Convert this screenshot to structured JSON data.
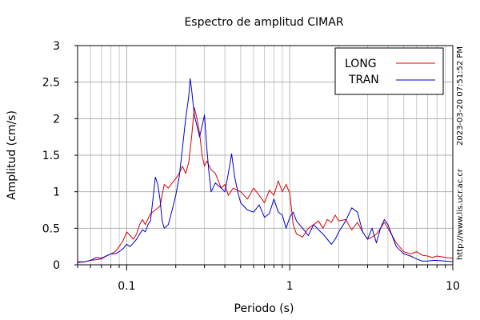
{
  "chart_data": {
    "type": "line",
    "title": "Espectro de amplitud CIMAR",
    "xlabel": "Periodo (s)",
    "ylabel": "Amplitud (cm/s)",
    "x_scale": "log",
    "xlim": [
      0.05,
      10
    ],
    "ylim": [
      0,
      3
    ],
    "x_ticks": [
      {
        "value": 0.1,
        "label": "0.1"
      },
      {
        "value": 1,
        "label": "1"
      },
      {
        "value": 10,
        "label": "10"
      }
    ],
    "y_ticks": [
      {
        "value": 0,
        "label": "0"
      },
      {
        "value": 0.5,
        "label": "0.5"
      },
      {
        "value": 1,
        "label": "1"
      },
      {
        "value": 1.5,
        "label": "1.5"
      },
      {
        "value": 2,
        "label": "2"
      },
      {
        "value": 2.5,
        "label": "2.5"
      },
      {
        "value": 3,
        "label": "3"
      }
    ],
    "grid": true,
    "legend_position": "top-right",
    "series": [
      {
        "name": "LONG",
        "color": "#dd0000",
        "points": [
          [
            0.05,
            0.04
          ],
          [
            0.055,
            0.04
          ],
          [
            0.06,
            0.06
          ],
          [
            0.065,
            0.07
          ],
          [
            0.07,
            0.08
          ],
          [
            0.075,
            0.12
          ],
          [
            0.08,
            0.15
          ],
          [
            0.085,
            0.18
          ],
          [
            0.09,
            0.25
          ],
          [
            0.095,
            0.33
          ],
          [
            0.1,
            0.45
          ],
          [
            0.105,
            0.4
          ],
          [
            0.11,
            0.35
          ],
          [
            0.115,
            0.42
          ],
          [
            0.12,
            0.55
          ],
          [
            0.125,
            0.62
          ],
          [
            0.13,
            0.55
          ],
          [
            0.14,
            0.7
          ],
          [
            0.15,
            0.75
          ],
          [
            0.16,
            0.8
          ],
          [
            0.17,
            1.1
          ],
          [
            0.18,
            1.05
          ],
          [
            0.19,
            1.12
          ],
          [
            0.2,
            1.18
          ],
          [
            0.21,
            1.25
          ],
          [
            0.22,
            1.35
          ],
          [
            0.23,
            1.25
          ],
          [
            0.24,
            1.4
          ],
          [
            0.25,
            1.75
          ],
          [
            0.26,
            2.15
          ],
          [
            0.27,
            2.0
          ],
          [
            0.28,
            1.8
          ],
          [
            0.29,
            1.5
          ],
          [
            0.3,
            1.35
          ],
          [
            0.31,
            1.42
          ],
          [
            0.33,
            1.3
          ],
          [
            0.35,
            1.25
          ],
          [
            0.38,
            1.05
          ],
          [
            0.4,
            1.1
          ],
          [
            0.42,
            0.95
          ],
          [
            0.45,
            1.05
          ],
          [
            0.5,
            1.0
          ],
          [
            0.55,
            0.9
          ],
          [
            0.6,
            1.05
          ],
          [
            0.65,
            0.95
          ],
          [
            0.7,
            0.85
          ],
          [
            0.75,
            1.02
          ],
          [
            0.8,
            0.95
          ],
          [
            0.85,
            1.15
          ],
          [
            0.9,
            1.0
          ],
          [
            0.95,
            1.1
          ],
          [
            1.0,
            0.98
          ],
          [
            1.05,
            0.55
          ],
          [
            1.1,
            0.42
          ],
          [
            1.2,
            0.38
          ],
          [
            1.3,
            0.5
          ],
          [
            1.4,
            0.55
          ],
          [
            1.5,
            0.6
          ],
          [
            1.6,
            0.5
          ],
          [
            1.7,
            0.62
          ],
          [
            1.8,
            0.58
          ],
          [
            1.9,
            0.68
          ],
          [
            2.0,
            0.6
          ],
          [
            2.2,
            0.62
          ],
          [
            2.4,
            0.48
          ],
          [
            2.6,
            0.58
          ],
          [
            2.8,
            0.45
          ],
          [
            3.0,
            0.35
          ],
          [
            3.2,
            0.38
          ],
          [
            3.4,
            0.42
          ],
          [
            3.6,
            0.5
          ],
          [
            3.8,
            0.58
          ],
          [
            4.0,
            0.5
          ],
          [
            4.2,
            0.42
          ],
          [
            4.5,
            0.3
          ],
          [
            5.0,
            0.18
          ],
          [
            5.5,
            0.15
          ],
          [
            6.0,
            0.18
          ],
          [
            6.5,
            0.13
          ],
          [
            7.0,
            0.12
          ],
          [
            7.5,
            0.1
          ],
          [
            8.0,
            0.12
          ],
          [
            9.0,
            0.1
          ],
          [
            10.0,
            0.09
          ]
        ]
      },
      {
        "name": "TRAN",
        "color": "#0000cc",
        "points": [
          [
            0.05,
            0.03
          ],
          [
            0.055,
            0.04
          ],
          [
            0.06,
            0.06
          ],
          [
            0.065,
            0.1
          ],
          [
            0.07,
            0.09
          ],
          [
            0.075,
            0.12
          ],
          [
            0.08,
            0.15
          ],
          [
            0.085,
            0.15
          ],
          [
            0.09,
            0.18
          ],
          [
            0.095,
            0.22
          ],
          [
            0.1,
            0.28
          ],
          [
            0.105,
            0.25
          ],
          [
            0.11,
            0.3
          ],
          [
            0.115,
            0.35
          ],
          [
            0.12,
            0.42
          ],
          [
            0.125,
            0.48
          ],
          [
            0.13,
            0.45
          ],
          [
            0.135,
            0.55
          ],
          [
            0.14,
            0.6
          ],
          [
            0.145,
            0.9
          ],
          [
            0.15,
            1.2
          ],
          [
            0.155,
            1.1
          ],
          [
            0.16,
            0.9
          ],
          [
            0.165,
            0.6
          ],
          [
            0.17,
            0.5
          ],
          [
            0.18,
            0.55
          ],
          [
            0.19,
            0.75
          ],
          [
            0.2,
            0.95
          ],
          [
            0.21,
            1.2
          ],
          [
            0.22,
            1.6
          ],
          [
            0.23,
            2.0
          ],
          [
            0.24,
            2.3
          ],
          [
            0.245,
            2.55
          ],
          [
            0.25,
            2.4
          ],
          [
            0.26,
            2.05
          ],
          [
            0.27,
            1.9
          ],
          [
            0.28,
            1.75
          ],
          [
            0.29,
            1.9
          ],
          [
            0.3,
            2.05
          ],
          [
            0.31,
            1.6
          ],
          [
            0.32,
            1.25
          ],
          [
            0.33,
            1.0
          ],
          [
            0.35,
            1.12
          ],
          [
            0.38,
            1.05
          ],
          [
            0.4,
            1.0
          ],
          [
            0.42,
            1.25
          ],
          [
            0.44,
            1.52
          ],
          [
            0.46,
            1.2
          ],
          [
            0.48,
            1.0
          ],
          [
            0.5,
            0.85
          ],
          [
            0.55,
            0.75
          ],
          [
            0.6,
            0.72
          ],
          [
            0.65,
            0.82
          ],
          [
            0.7,
            0.65
          ],
          [
            0.75,
            0.7
          ],
          [
            0.8,
            0.9
          ],
          [
            0.85,
            0.72
          ],
          [
            0.9,
            0.68
          ],
          [
            0.95,
            0.5
          ],
          [
            1.0,
            0.65
          ],
          [
            1.05,
            0.72
          ],
          [
            1.1,
            0.6
          ],
          [
            1.2,
            0.5
          ],
          [
            1.3,
            0.4
          ],
          [
            1.4,
            0.55
          ],
          [
            1.5,
            0.48
          ],
          [
            1.6,
            0.42
          ],
          [
            1.7,
            0.35
          ],
          [
            1.8,
            0.28
          ],
          [
            1.9,
            0.35
          ],
          [
            2.0,
            0.45
          ],
          [
            2.2,
            0.6
          ],
          [
            2.4,
            0.78
          ],
          [
            2.6,
            0.72
          ],
          [
            2.8,
            0.45
          ],
          [
            3.0,
            0.35
          ],
          [
            3.2,
            0.5
          ],
          [
            3.4,
            0.3
          ],
          [
            3.6,
            0.5
          ],
          [
            3.8,
            0.62
          ],
          [
            4.0,
            0.55
          ],
          [
            4.5,
            0.25
          ],
          [
            5.0,
            0.15
          ],
          [
            5.5,
            0.12
          ],
          [
            6.0,
            0.08
          ],
          [
            6.5,
            0.05
          ],
          [
            7.0,
            0.05
          ],
          [
            7.5,
            0.06
          ],
          [
            8.0,
            0.06
          ],
          [
            9.0,
            0.05
          ],
          [
            10.0,
            0.04
          ]
        ]
      }
    ]
  },
  "side_labels": {
    "timestamp": "2023-03-20 07:51:52 PM",
    "url": "http://www.lis.ucr.ac.cr"
  }
}
